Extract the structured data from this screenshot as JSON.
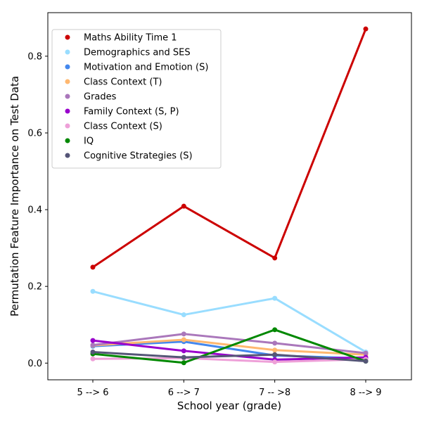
{
  "chart_data": {
    "type": "line",
    "title": "",
    "xlabel": "School year (grade)",
    "ylabel": "Permutation Feature Importance on Test Data",
    "categories": [
      "5 --> 6",
      "6 --> 7",
      "7 -- >8",
      "8 --> 9"
    ],
    "ylim": [
      -0.0435,
      0.9135
    ],
    "yticks": [
      0.0,
      0.2,
      0.4,
      0.6,
      0.8
    ],
    "ytick_labels": [
      "0.0",
      "0.2",
      "0.4",
      "0.6",
      "0.8"
    ],
    "grid": false,
    "legend_position": "top-left",
    "series": [
      {
        "name": "Maths Ability Time 1",
        "color": "#cc0000",
        "values": [
          0.25,
          0.409,
          0.274,
          0.871
        ]
      },
      {
        "name": "Demographics and SES",
        "color": "#99ddff",
        "values": [
          0.187,
          0.126,
          0.169,
          0.029
        ]
      },
      {
        "name": "Motivation and Emotion (S)",
        "color": "#4488ee",
        "values": [
          0.044,
          0.056,
          0.02,
          0.012
        ]
      },
      {
        "name": "Class Context (T)",
        "color": "#ffb870",
        "values": [
          0.046,
          0.061,
          0.034,
          0.022
        ]
      },
      {
        "name": "Grades",
        "color": "#aa77bb",
        "values": [
          0.047,
          0.076,
          0.052,
          0.026
        ]
      },
      {
        "name": "Family Context (S, P)",
        "color": "#9900cc",
        "values": [
          0.059,
          0.032,
          0.009,
          0.015
        ]
      },
      {
        "name": "Class Context (S)",
        "color": "#eea0d8",
        "values": [
          0.011,
          0.013,
          0.003,
          0.01
        ]
      },
      {
        "name": "IQ",
        "color": "#008800",
        "values": [
          0.024,
          0.001,
          0.087,
          0.005
        ]
      },
      {
        "name": "Cognitive Strategies (S)",
        "color": "#555577",
        "values": [
          0.029,
          0.015,
          0.022,
          0.005
        ]
      }
    ]
  }
}
